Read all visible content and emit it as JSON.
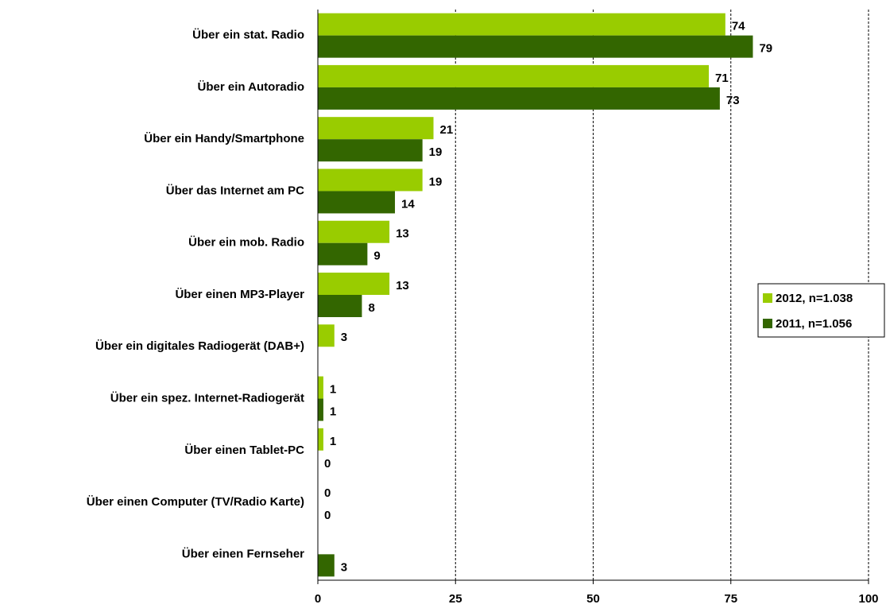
{
  "chart_data": {
    "type": "hbar",
    "categories": [
      "Über ein stat. Radio",
      "Über ein Autoradio",
      "Über ein Handy/Smartphone",
      "Über das Internet am PC",
      "Über ein mob. Radio",
      "Über einen MP3-Player",
      "Über ein digitales Radiogerät (DAB+)",
      "Über ein spez. Internet-Radiogerät",
      "Über einen Tablet-PC",
      "Über einen Computer (TV/Radio Karte)",
      "Über einen Fernseher"
    ],
    "series": [
      {
        "name": "2012, n=1.038",
        "color": "#99cc00",
        "values": [
          74,
          71,
          21,
          19,
          13,
          13,
          3,
          1,
          1,
          0,
          null
        ]
      },
      {
        "name": "2011, n=1.056",
        "color": "#336600",
        "values": [
          79,
          73,
          19,
          14,
          9,
          8,
          null,
          1,
          0,
          0,
          3
        ]
      }
    ],
    "xlim": [
      0,
      100
    ],
    "xticks": [
      0,
      25,
      50,
      75,
      100
    ],
    "grid": true,
    "legend": "right"
  }
}
